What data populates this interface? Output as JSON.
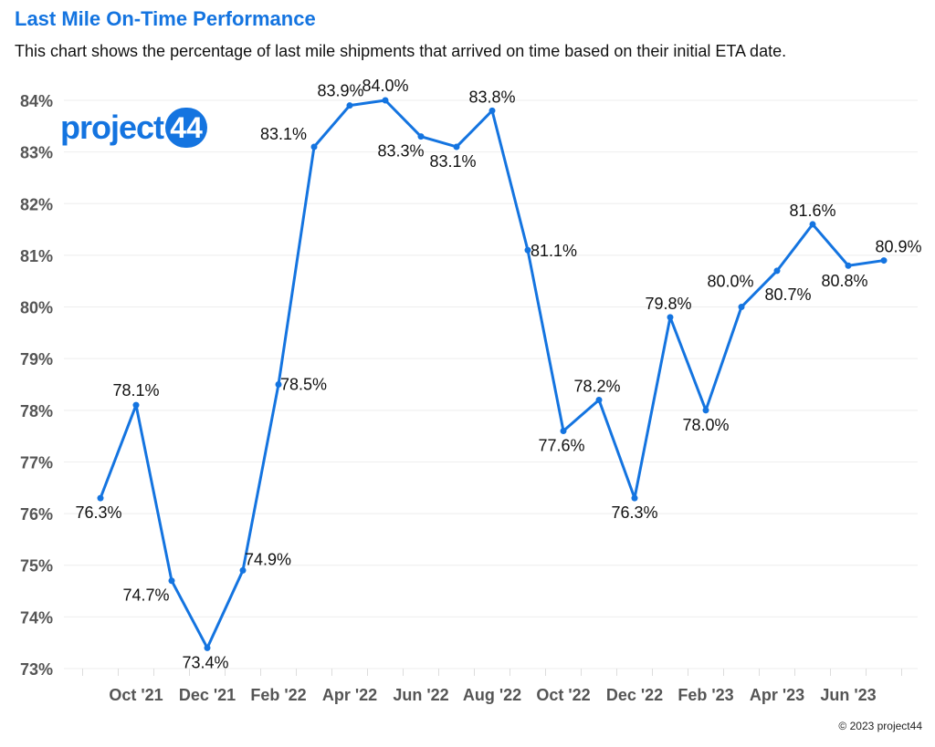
{
  "header": {
    "title": "Last Mile On-Time Performance",
    "subtitle": "This chart shows the percentage of last mile shipments that arrived on time based on their initial ETA date."
  },
  "logo": {
    "text": "project",
    "badge": "44"
  },
  "footer": {
    "copyright": "© 2023 project44"
  },
  "colors": {
    "accent": "#1474e0",
    "line": "#1474e0",
    "grid": "#eeeeee",
    "axis_text": "#555555"
  },
  "chart_data": {
    "type": "line",
    "x": [
      "Sep '21",
      "Oct '21",
      "Nov '21",
      "Dec '21",
      "Jan '22",
      "Feb '22",
      "Mar '22",
      "Apr '22",
      "May '22",
      "Jun '22",
      "Jul '22",
      "Aug '22",
      "Sep '22",
      "Oct '22",
      "Nov '22",
      "Dec '22",
      "Jan '23",
      "Feb '23",
      "Mar '23",
      "Apr '23",
      "May '23",
      "Jun '23",
      "Jul '23"
    ],
    "x_tick_labels": [
      "Oct '21",
      "Dec '21",
      "Feb '22",
      "Apr '22",
      "Jun '22",
      "Aug '22",
      "Oct '22",
      "Dec '22",
      "Feb '23",
      "Apr '23",
      "Jun '23"
    ],
    "series": [
      {
        "values": [
          76.3,
          78.1,
          74.7,
          73.4,
          74.9,
          78.5,
          83.1,
          83.9,
          84.0,
          83.3,
          83.1,
          83.8,
          81.1,
          77.6,
          78.2,
          76.3,
          79.8,
          78.0,
          80.0,
          80.7,
          81.6,
          80.8,
          80.9
        ],
        "labels": [
          "76.3%",
          "78.1%",
          "74.7%",
          "73.4%",
          "74.9%",
          "78.5%",
          "83.1%",
          "83.9%",
          "84.0%",
          "83.3%",
          "83.1%",
          "83.8%",
          "81.1%",
          "77.6%",
          "78.2%",
          "76.3%",
          "79.8%",
          "78.0%",
          "80.0%",
          "80.7%",
          "81.6%",
          "80.8%",
          "80.9%"
        ]
      }
    ],
    "ylim": [
      73,
      84
    ],
    "y_ticks": [
      "73%",
      "74%",
      "75%",
      "76%",
      "77%",
      "78%",
      "79%",
      "80%",
      "81%",
      "82%",
      "83%",
      "84%"
    ],
    "grid": true,
    "legend": "none"
  }
}
